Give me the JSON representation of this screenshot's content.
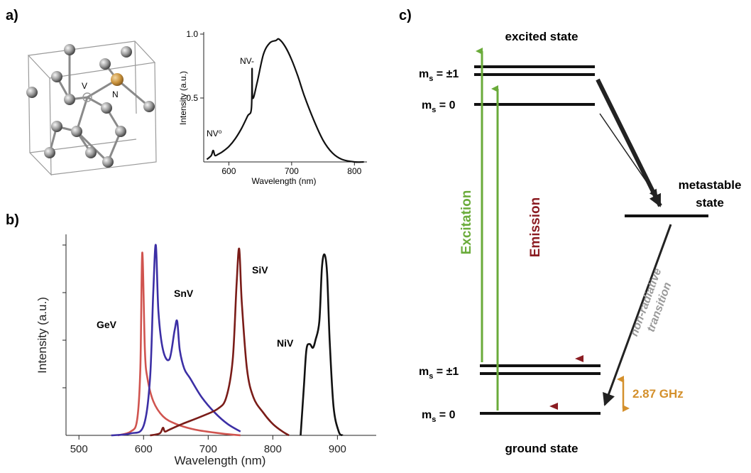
{
  "panels": {
    "a": "a)",
    "b": "b)",
    "c": "c)"
  },
  "lattice": {
    "vacancy_label": "V",
    "nitrogen_label": "N",
    "nitrogen_color": "#c8913a"
  },
  "chart_nv": {
    "type": "line",
    "xlabel": "Wavelength (nm)",
    "ylabel": "Intensity (a.u.)",
    "x_ticks": [
      "600",
      "700",
      "800"
    ],
    "y_ticks": [
      "0.5",
      "1.0"
    ],
    "xlim": [
      560,
      820
    ],
    "ylim": [
      0,
      1.0
    ],
    "annotations": [
      "NV-",
      "NV⁰"
    ]
  },
  "chart_color": {
    "type": "line",
    "xlabel": "Wavelength (nm)",
    "ylabel": "Intensity (a.u.)",
    "x_ticks": [
      "500",
      "600",
      "700",
      "800",
      "900"
    ],
    "xlim": [
      480,
      960
    ],
    "series_labels": [
      "GeV",
      "SnV",
      "SiV",
      "NiV"
    ],
    "series_colors": [
      "#d0544f",
      "#3c2fa5",
      "#7a1c18",
      "#111111"
    ]
  },
  "chart_data": [
    {
      "type": "line",
      "xlabel": "Wavelength (nm)",
      "ylabel": "Intensity (a.u.)",
      "xlim": [
        560,
        820
      ],
      "ylim": [
        0,
        1.0
      ],
      "series": [
        {
          "name": "NV",
          "x": [
            565,
            572,
            575,
            578,
            583,
            590,
            600,
            610,
            620,
            630,
            636,
            637,
            638,
            645,
            655,
            665,
            675,
            680,
            690,
            700,
            710,
            720,
            735,
            750,
            765,
            780,
            800,
            815
          ],
          "y": [
            0.02,
            0.05,
            0.09,
            0.05,
            0.06,
            0.08,
            0.12,
            0.18,
            0.26,
            0.36,
            0.42,
            0.73,
            0.5,
            0.62,
            0.84,
            0.93,
            0.95,
            0.96,
            0.9,
            0.8,
            0.67,
            0.52,
            0.33,
            0.17,
            0.07,
            0.02,
            0.0,
            0.0
          ]
        }
      ]
    },
    {
      "type": "line",
      "xlabel": "Wavelength (nm)",
      "ylabel": "Intensity (a.u.)",
      "xlim": [
        480,
        960
      ],
      "ylim": [
        0,
        1.0
      ],
      "series": [
        {
          "name": "GeV",
          "color": "#d0544f",
          "x": [
            560,
            580,
            590,
            595,
            598,
            602,
            606,
            615,
            630,
            650,
            680,
            720,
            750
          ],
          "y": [
            0.0,
            0.02,
            0.08,
            0.35,
            0.96,
            0.45,
            0.3,
            0.18,
            0.1,
            0.06,
            0.03,
            0.01,
            0.0
          ]
        },
        {
          "name": "SnV",
          "color": "#3c2fa5",
          "x": [
            550,
            580,
            600,
            610,
            615,
            619,
            623,
            630,
            640,
            648,
            652,
            656,
            663,
            672,
            690,
            710,
            730,
            750
          ],
          "y": [
            0.0,
            0.01,
            0.05,
            0.3,
            0.75,
            1.0,
            0.65,
            0.45,
            0.4,
            0.55,
            0.6,
            0.45,
            0.35,
            0.3,
            0.2,
            0.12,
            0.06,
            0.02
          ]
        },
        {
          "name": "SiV",
          "color": "#7a1c18",
          "x": [
            610,
            625,
            630,
            633,
            640,
            660,
            690,
            715,
            728,
            738,
            744,
            748,
            752,
            760,
            770,
            785,
            800,
            815,
            825
          ],
          "y": [
            0.0,
            0.01,
            0.04,
            0.02,
            0.03,
            0.06,
            0.1,
            0.14,
            0.2,
            0.4,
            0.8,
            0.98,
            0.7,
            0.35,
            0.2,
            0.12,
            0.06,
            0.02,
            0.0
          ]
        },
        {
          "name": "NiV",
          "color": "#111111",
          "x": [
            843,
            848,
            852,
            857,
            862,
            866,
            872,
            876,
            880,
            884,
            888,
            894,
            902,
            908
          ],
          "y": [
            0.0,
            0.25,
            0.45,
            0.48,
            0.46,
            0.5,
            0.6,
            0.88,
            0.95,
            0.85,
            0.5,
            0.15,
            0.02,
            0.0
          ]
        }
      ]
    }
  ],
  "energy_diagram": {
    "excited_state_title": "excited state",
    "ground_state_title": "ground state",
    "metastable_title_1": "metastable",
    "metastable_title_2": "state",
    "ms_label": "m",
    "ms_sub": "s",
    "ms_pm1_value": " = ±1",
    "ms_0_value": " = 0",
    "excitation_label": "Excitation",
    "emission_label": "Emission",
    "nonrad_line1": "non-radiative",
    "nonrad_line2": "transition",
    "splitting_label": "2.87 GHz",
    "colors": {
      "excitation": "#6aab3a",
      "emission": "#8b1c22",
      "nonrad": "#9a9a9a",
      "splitting": "#d4902c"
    }
  }
}
